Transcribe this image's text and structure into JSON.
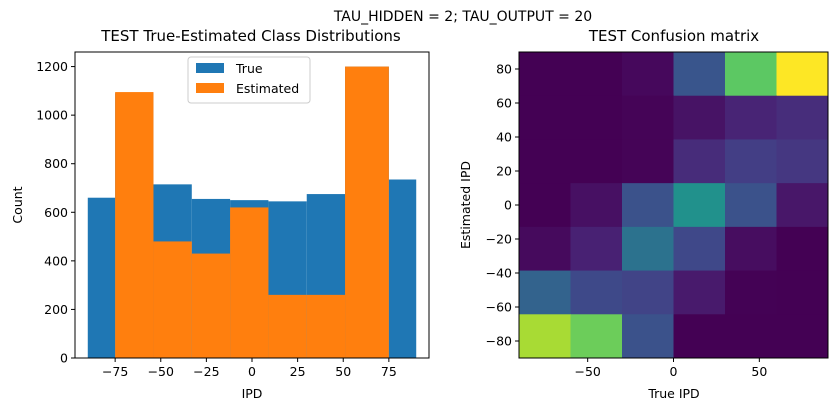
{
  "suptitle": "TAU_HIDDEN = 2; TAU_OUTPUT = 20",
  "colors": {
    "true": "#1f77b4",
    "estimated": "#ff7f0e"
  },
  "chart_data": [
    {
      "type": "histogram",
      "title": "TEST True-Estimated Class Distributions",
      "xlabel": "IPD",
      "ylabel": "Count",
      "xlim": [
        -97,
        97
      ],
      "ylim": [
        0,
        1260
      ],
      "xticks": [
        -75,
        -50,
        -25,
        0,
        25,
        50,
        75
      ],
      "xtick_labels": [
        "−75",
        "−50",
        "−25",
        "0",
        "25",
        "50",
        "75"
      ],
      "yticks": [
        0,
        200,
        400,
        600,
        800,
        1000,
        1200
      ],
      "ytick_labels": [
        "0",
        "200",
        "400",
        "600",
        "800",
        "1000",
        "1200"
      ],
      "legend": {
        "position": "upper center",
        "entries": [
          "True",
          "Estimated"
        ]
      },
      "series": [
        {
          "name": "True",
          "color": "#1f77b4",
          "bins": [
            [
              -90,
              -75
            ],
            [
              -75,
              -54
            ],
            [
              -54,
              -33
            ],
            [
              -33,
              -12
            ],
            [
              -12,
              9
            ],
            [
              9,
              30
            ],
            [
              30,
              51
            ],
            [
              51,
              75
            ],
            [
              75,
              90
            ]
          ],
          "values": [
            660,
            1090,
            715,
            655,
            650,
            645,
            675,
            1200,
            735
          ]
        },
        {
          "name": "Estimated",
          "color": "#ff7f0e",
          "bins": [
            [
              -75,
              -54
            ],
            [
              -54,
              -33
            ],
            [
              -33,
              -12
            ],
            [
              -12,
              9
            ],
            [
              9,
              30
            ],
            [
              30,
              51
            ],
            [
              51,
              75
            ]
          ],
          "values": [
            1095,
            480,
            430,
            620,
            260,
            260,
            1200
          ]
        }
      ]
    },
    {
      "type": "heatmap",
      "title": "TEST Confusion matrix",
      "xlabel": "True IPD",
      "ylabel": "Estimated IPD",
      "xlim": [
        -90,
        90
      ],
      "ylim": [
        -90,
        90
      ],
      "xticks": [
        -50,
        0,
        50
      ],
      "xtick_labels": [
        "−50",
        "0",
        "50"
      ],
      "yticks": [
        -80,
        -60,
        -40,
        -20,
        0,
        20,
        40,
        60,
        80
      ],
      "ytick_labels": [
        "−80",
        "−60",
        "−40",
        "−20",
        "0",
        "20",
        "40",
        "60",
        "80"
      ],
      "colormap": "viridis",
      "rows_top_to_bottom": [
        [
          "#440154",
          "#440154",
          "#46085c",
          "#39558c",
          "#5cc863",
          "#fde725"
        ],
        [
          "#440154",
          "#440154",
          "#450457",
          "#471365",
          "#482475",
          "#472d7b"
        ],
        [
          "#440154",
          "#440154",
          "#450457",
          "#472c7a",
          "#433e85",
          "#453781"
        ],
        [
          "#440154",
          "#471063",
          "#3b528b",
          "#21918c",
          "#3b528b",
          "#481769"
        ],
        [
          "#460a5d",
          "#482173",
          "#2c728e",
          "#3f4889",
          "#470d60",
          "#440154"
        ],
        [
          "#33638d",
          "#3e4989",
          "#414487",
          "#481a6c",
          "#440255",
          "#440154"
        ],
        [
          "#a8db34",
          "#6ccd5a",
          "#3b528b",
          "#440154",
          "#440154",
          "#440154"
        ]
      ]
    }
  ]
}
